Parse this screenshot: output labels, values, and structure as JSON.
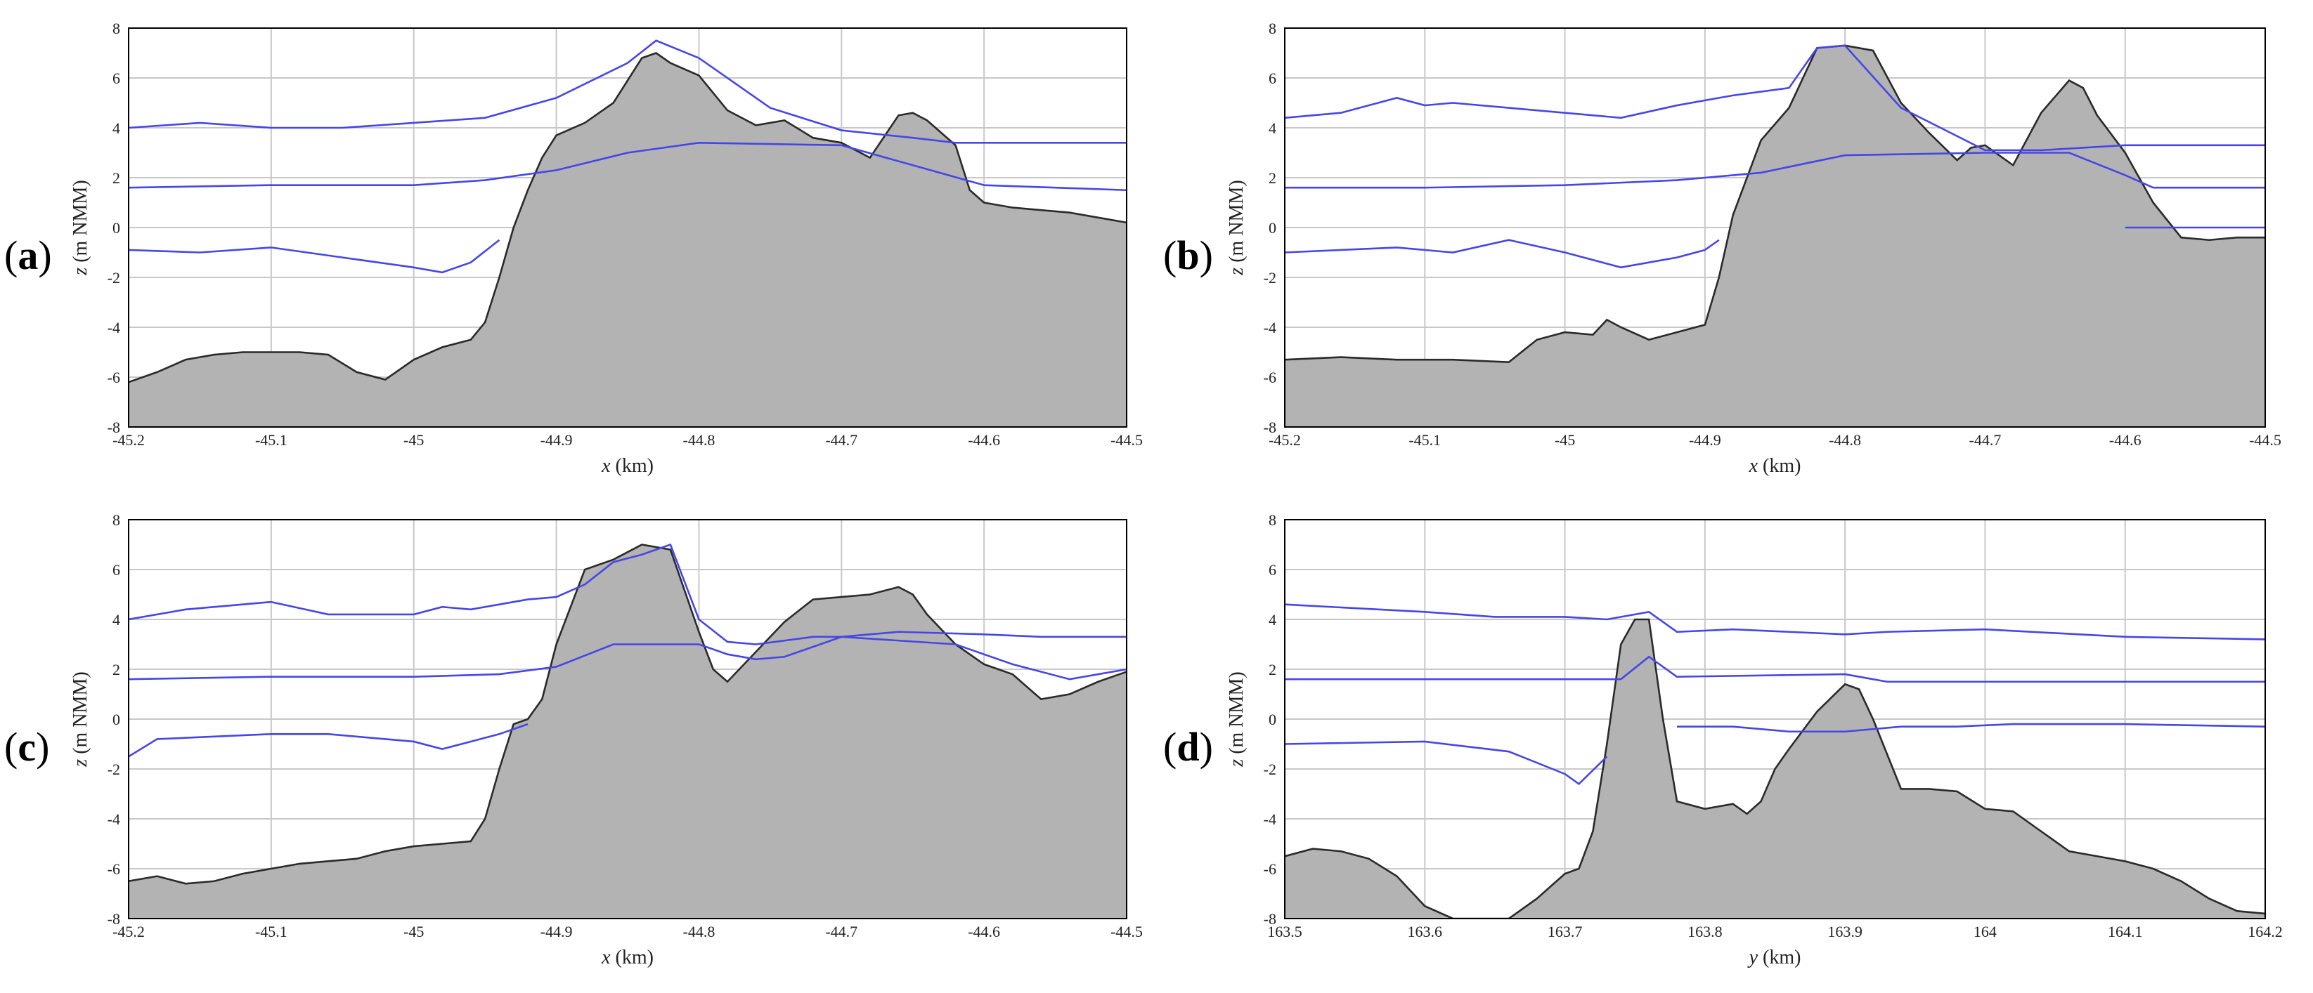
{
  "colors": {
    "terrain_fill": "#b3b3b3",
    "terrain_edge": "#2a2a2a",
    "water_line": "#4646e6",
    "grid": "#c8c8c8",
    "axes": "#000000"
  },
  "chart_data": [
    {
      "type": "area",
      "panel_label": "a",
      "xlabel_var": "x",
      "xlabel_unit": " (km)",
      "ylabel_var": "z",
      "ylabel_unit": " (m NMM)",
      "xlim": [
        -45.2,
        -44.5
      ],
      "ylim": [
        -8,
        8
      ],
      "xticks": [
        "-45.2",
        "-45.1",
        "-45",
        "-44.9",
        "-44.8",
        "-44.7",
        "-44.6",
        "-44.5"
      ],
      "yticks": [
        "-8",
        "-6",
        "-4",
        "-2",
        "0",
        "2",
        "4",
        "6",
        "8"
      ],
      "grid": true,
      "terrain": {
        "x": [
          -45.2,
          -45.18,
          -45.16,
          -45.14,
          -45.12,
          -45.1,
          -45.08,
          -45.06,
          -45.04,
          -45.02,
          -45.0,
          -44.98,
          -44.96,
          -44.95,
          -44.94,
          -44.93,
          -44.92,
          -44.91,
          -44.9,
          -44.88,
          -44.86,
          -44.84,
          -44.83,
          -44.82,
          -44.8,
          -44.78,
          -44.76,
          -44.74,
          -44.72,
          -44.7,
          -44.68,
          -44.66,
          -44.65,
          -44.64,
          -44.62,
          -44.61,
          -44.6,
          -44.58,
          -44.56,
          -44.54,
          -44.52,
          -44.5
        ],
        "y": [
          -6.2,
          -5.8,
          -5.3,
          -5.1,
          -5.0,
          -5.0,
          -5.0,
          -5.1,
          -5.8,
          -6.1,
          -5.3,
          -4.8,
          -4.5,
          -3.8,
          -2.0,
          0.0,
          1.5,
          2.8,
          3.7,
          4.2,
          5.0,
          6.8,
          7.0,
          6.6,
          6.1,
          4.7,
          4.1,
          4.3,
          3.6,
          3.4,
          2.8,
          4.5,
          4.6,
          4.3,
          3.3,
          1.5,
          1.0,
          0.8,
          0.7,
          0.6,
          0.4,
          0.2
        ]
      },
      "series": [
        {
          "x": [
            -45.2,
            -45.15,
            -45.1,
            -45.05,
            -45.0,
            -44.95,
            -44.9,
            -44.85,
            -44.83,
            -44.8,
            -44.75,
            -44.7,
            -44.65,
            -44.62,
            -44.6,
            -44.55,
            -44.5
          ],
          "values": [
            4.0,
            4.2,
            4.0,
            4.0,
            4.2,
            4.4,
            5.2,
            6.6,
            7.5,
            6.8,
            4.8,
            3.9,
            3.6,
            3.4,
            3.4,
            3.4,
            3.4
          ]
        },
        {
          "x": [
            -45.2,
            -45.1,
            -45.0,
            -44.95,
            -44.9,
            -44.85,
            -44.8,
            -44.7,
            -44.6,
            -44.55,
            -44.5
          ],
          "values": [
            1.6,
            1.7,
            1.7,
            1.9,
            2.3,
            3.0,
            3.4,
            3.3,
            1.7,
            1.6,
            1.5
          ]
        },
        {
          "x": [
            -45.2,
            -45.15,
            -45.1,
            -45.05,
            -45.0,
            -44.98,
            -44.96,
            -44.94
          ],
          "values": [
            -0.9,
            -1.0,
            -0.8,
            -1.2,
            -1.6,
            -1.8,
            -1.4,
            -0.5
          ]
        }
      ]
    },
    {
      "type": "area",
      "panel_label": "b",
      "xlabel_var": "x",
      "xlabel_unit": " (km)",
      "ylabel_var": "z",
      "ylabel_unit": " (m NMM)",
      "xlim": [
        -45.2,
        -44.5
      ],
      "ylim": [
        -8,
        8
      ],
      "xticks": [
        "-45.2",
        "-45.1",
        "-45",
        "-44.9",
        "-44.8",
        "-44.7",
        "-44.6",
        "-44.5"
      ],
      "yticks": [
        "-8",
        "-6",
        "-4",
        "-2",
        "0",
        "2",
        "4",
        "6",
        "8"
      ],
      "grid": true,
      "terrain": {
        "x": [
          -45.2,
          -45.16,
          -45.12,
          -45.08,
          -45.04,
          -45.02,
          -45.0,
          -44.98,
          -44.97,
          -44.96,
          -44.94,
          -44.92,
          -44.9,
          -44.89,
          -44.88,
          -44.86,
          -44.84,
          -44.82,
          -44.8,
          -44.78,
          -44.76,
          -44.74,
          -44.72,
          -44.71,
          -44.7,
          -44.69,
          -44.68,
          -44.66,
          -44.64,
          -44.63,
          -44.62,
          -44.6,
          -44.58,
          -44.56,
          -44.54,
          -44.52,
          -44.5
        ],
        "y": [
          -5.3,
          -5.2,
          -5.3,
          -5.3,
          -5.4,
          -4.5,
          -4.2,
          -4.3,
          -3.7,
          -4.0,
          -4.5,
          -4.2,
          -3.9,
          -2.0,
          0.5,
          3.5,
          4.8,
          7.2,
          7.3,
          7.1,
          5.0,
          3.8,
          2.7,
          3.2,
          3.3,
          2.9,
          2.5,
          4.6,
          5.9,
          5.6,
          4.5,
          3.0,
          1.0,
          -0.4,
          -0.5,
          -0.4,
          -0.4
        ]
      },
      "series": [
        {
          "x": [
            -45.2,
            -45.16,
            -45.12,
            -45.1,
            -45.08,
            -45.04,
            -45.0,
            -44.96,
            -44.92,
            -44.88,
            -44.84,
            -44.82,
            -44.8,
            -44.76,
            -44.7,
            -44.66,
            -44.6,
            -44.56,
            -44.5
          ],
          "values": [
            4.4,
            4.6,
            5.2,
            4.9,
            5.0,
            4.8,
            4.6,
            4.4,
            4.9,
            5.3,
            5.6,
            7.2,
            7.3,
            4.8,
            3.1,
            3.1,
            3.3,
            3.3,
            3.3
          ]
        },
        {
          "x": [
            -45.2,
            -45.1,
            -45.0,
            -44.92,
            -44.86,
            -44.8,
            -44.7,
            -44.64,
            -44.6,
            -44.58,
            -44.5
          ],
          "values": [
            1.6,
            1.6,
            1.7,
            1.9,
            2.2,
            2.9,
            3.0,
            3.0,
            2.1,
            1.6,
            1.6
          ]
        },
        {
          "x": [
            -45.2,
            -45.16,
            -45.12,
            -45.08,
            -45.04,
            -45.0,
            -44.96,
            -44.94,
            -44.92,
            -44.9,
            -44.89
          ],
          "values": [
            -1.0,
            -0.9,
            -0.8,
            -1.0,
            -0.5,
            -1.0,
            -1.6,
            -1.4,
            -1.2,
            -0.9,
            -0.5
          ]
        },
        {
          "x": [
            -44.6,
            -44.55,
            -44.5
          ],
          "values": [
            0.0,
            0.0,
            0.0
          ]
        }
      ]
    },
    {
      "type": "area",
      "panel_label": "c",
      "xlabel_var": "x",
      "xlabel_unit": " (km)",
      "ylabel_var": "z",
      "ylabel_unit": " (m NMM)",
      "xlim": [
        -45.2,
        -44.5
      ],
      "ylim": [
        -8,
        8
      ],
      "xticks": [
        "-45.2",
        "-45.1",
        "-45",
        "-44.9",
        "-44.8",
        "-44.7",
        "-44.6",
        "-44.5"
      ],
      "yticks": [
        "-8",
        "-6",
        "-4",
        "-2",
        "0",
        "2",
        "4",
        "6",
        "8"
      ],
      "grid": true,
      "terrain": {
        "x": [
          -45.2,
          -45.18,
          -45.16,
          -45.14,
          -45.12,
          -45.1,
          -45.08,
          -45.06,
          -45.04,
          -45.02,
          -45.0,
          -44.98,
          -44.96,
          -44.95,
          -44.94,
          -44.93,
          -44.92,
          -44.91,
          -44.9,
          -44.88,
          -44.86,
          -44.84,
          -44.82,
          -44.8,
          -44.79,
          -44.78,
          -44.76,
          -44.74,
          -44.72,
          -44.7,
          -44.68,
          -44.66,
          -44.65,
          -44.64,
          -44.62,
          -44.6,
          -44.58,
          -44.56,
          -44.54,
          -44.52,
          -44.5
        ],
        "y": [
          -6.5,
          -6.3,
          -6.6,
          -6.5,
          -6.2,
          -6.0,
          -5.8,
          -5.7,
          -5.6,
          -5.3,
          -5.1,
          -5.0,
          -4.9,
          -4.0,
          -2.0,
          -0.2,
          0.0,
          0.8,
          3.0,
          6.0,
          6.4,
          7.0,
          6.8,
          3.5,
          2.0,
          1.5,
          2.7,
          3.9,
          4.8,
          4.9,
          5.0,
          5.3,
          5.0,
          4.2,
          3.0,
          2.2,
          1.8,
          0.8,
          1.0,
          1.5,
          1.9
        ]
      },
      "series": [
        {
          "x": [
            -45.2,
            -45.16,
            -45.1,
            -45.06,
            -45.0,
            -44.98,
            -44.96,
            -44.92,
            -44.9,
            -44.88,
            -44.86,
            -44.84,
            -44.82,
            -44.8,
            -44.78,
            -44.76,
            -44.72,
            -44.7,
            -44.66,
            -44.6,
            -44.56,
            -44.5
          ],
          "values": [
            4.0,
            4.4,
            4.7,
            4.2,
            4.2,
            4.5,
            4.4,
            4.8,
            4.9,
            5.4,
            6.3,
            6.6,
            7.0,
            4.0,
            3.1,
            3.0,
            3.3,
            3.3,
            3.5,
            3.4,
            3.3,
            3.3
          ]
        },
        {
          "x": [
            -45.2,
            -45.1,
            -45.0,
            -44.94,
            -44.9,
            -44.86,
            -44.8,
            -44.78,
            -44.76,
            -44.74,
            -44.7,
            -44.62,
            -44.58,
            -44.54,
            -44.5
          ],
          "values": [
            1.6,
            1.7,
            1.7,
            1.8,
            2.1,
            3.0,
            3.0,
            2.6,
            2.4,
            2.5,
            3.3,
            3.0,
            2.2,
            1.6,
            2.0
          ]
        },
        {
          "x": [
            -45.2,
            -45.18,
            -45.14,
            -45.1,
            -45.06,
            -45.0,
            -44.98,
            -44.96,
            -44.94,
            -44.92
          ],
          "values": [
            -1.5,
            -0.8,
            -0.7,
            -0.6,
            -0.6,
            -0.9,
            -1.2,
            -0.9,
            -0.6,
            -0.2
          ]
        }
      ]
    },
    {
      "type": "area",
      "panel_label": "d",
      "xlabel_var": "y",
      "xlabel_unit": " (km)",
      "ylabel_var": "z",
      "ylabel_unit": " (m NMM)",
      "xlim": [
        163.5,
        164.2
      ],
      "ylim": [
        -8,
        8
      ],
      "xticks": [
        "163.5",
        "163.6",
        "163.7",
        "163.8",
        "163.9",
        "164",
        "164.1",
        "164.2"
      ],
      "yticks": [
        "-8",
        "-6",
        "-4",
        "-2",
        "0",
        "2",
        "4",
        "6",
        "8"
      ],
      "grid": true,
      "terrain": {
        "x": [
          163.5,
          163.52,
          163.54,
          163.56,
          163.58,
          163.6,
          163.62,
          163.64,
          163.66,
          163.68,
          163.7,
          163.71,
          163.72,
          163.73,
          163.74,
          163.75,
          163.76,
          163.77,
          163.78,
          163.8,
          163.82,
          163.83,
          163.84,
          163.85,
          163.86,
          163.88,
          163.9,
          163.91,
          163.92,
          163.94,
          163.96,
          163.98,
          164.0,
          164.02,
          164.04,
          164.06,
          164.08,
          164.1,
          164.12,
          164.14,
          164.16,
          164.18,
          164.2
        ],
        "y": [
          -5.5,
          -5.2,
          -5.3,
          -5.6,
          -6.3,
          -7.5,
          -8.0,
          -8.0,
          -8.0,
          -7.2,
          -6.2,
          -6.0,
          -4.5,
          -1.0,
          3.0,
          4.0,
          4.0,
          0.0,
          -3.3,
          -3.6,
          -3.4,
          -3.8,
          -3.3,
          -2.0,
          -1.2,
          0.3,
          1.4,
          1.2,
          0.0,
          -2.8,
          -2.8,
          -2.9,
          -3.6,
          -3.7,
          -4.5,
          -5.3,
          -5.5,
          -5.7,
          -6.0,
          -6.5,
          -7.2,
          -7.7,
          -7.8
        ]
      },
      "series": [
        {
          "x": [
            163.5,
            163.6,
            163.65,
            163.7,
            163.73,
            163.76,
            163.78,
            163.82,
            163.9,
            163.93,
            164.0,
            164.1,
            164.2
          ],
          "values": [
            4.6,
            4.3,
            4.1,
            4.1,
            4.0,
            4.3,
            3.5,
            3.6,
            3.4,
            3.5,
            3.6,
            3.3,
            3.2
          ]
        },
        {
          "x": [
            163.5,
            163.6,
            163.7,
            163.74,
            163.76,
            163.78,
            163.9,
            163.92,
            163.93,
            164.0,
            164.1,
            164.2
          ],
          "values": [
            1.6,
            1.6,
            1.6,
            1.6,
            2.5,
            1.7,
            1.8,
            1.6,
            1.5,
            1.5,
            1.5,
            1.5
          ]
        },
        {
          "x": [
            163.5,
            163.6,
            163.66,
            163.7,
            163.71,
            163.73
          ],
          "values": [
            -1.0,
            -0.9,
            -1.3,
            -2.2,
            -2.6,
            -1.5
          ]
        },
        {
          "x": [
            163.78,
            163.82,
            163.86,
            163.9,
            163.94,
            163.98,
            164.02,
            164.1,
            164.2
          ],
          "values": [
            -0.3,
            -0.3,
            -0.5,
            -0.5,
            -0.3,
            -0.3,
            -0.2,
            -0.2,
            -0.3
          ]
        }
      ]
    }
  ]
}
